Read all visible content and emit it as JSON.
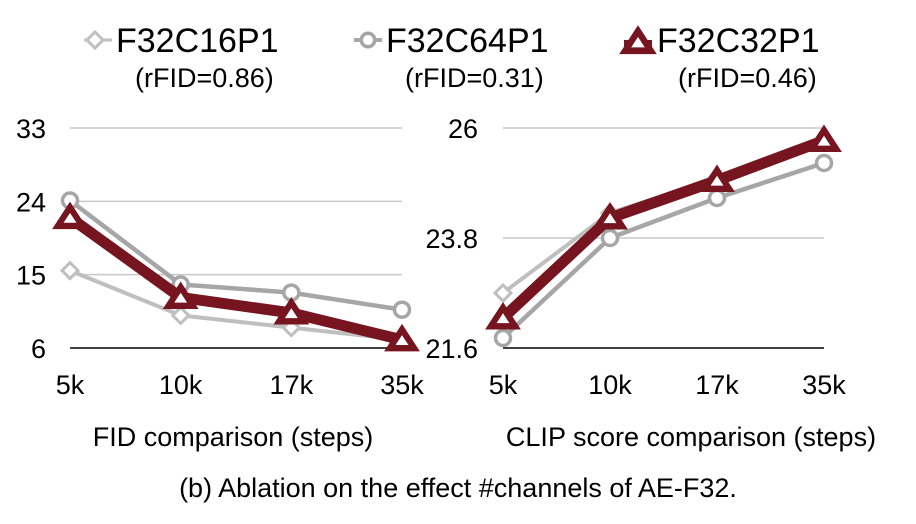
{
  "legend": [
    {
      "name": "F32C16P1",
      "sub": "(rFID=0.86)",
      "marker": "diamond",
      "color": "#bfbfbf"
    },
    {
      "name": "F32C64P1",
      "sub": "(rFID=0.31)",
      "marker": "circle",
      "color": "#a6a6a6"
    },
    {
      "name": "F32C32P1",
      "sub": "(rFID=0.46)",
      "marker": "triangle",
      "color": "#76151f"
    }
  ],
  "caption": "(b) Ablation on the effect #channels of AE-F32.",
  "chart_data": [
    {
      "type": "line",
      "title": "",
      "xlabel": "FID comparison (steps)",
      "ylabel": "",
      "categories": [
        "5k",
        "10k",
        "17k",
        "35k"
      ],
      "yticks": [
        "33",
        "24",
        "15",
        "6"
      ],
      "ylim": [
        6,
        33
      ],
      "grid": true,
      "series": [
        {
          "name": "F32C16P1",
          "values": [
            15.5,
            10.0,
            8.5,
            7.0
          ]
        },
        {
          "name": "F32C64P1",
          "values": [
            24.1,
            13.8,
            12.8,
            10.7
          ]
        },
        {
          "name": "F32C32P1",
          "values": [
            22.0,
            12.2,
            10.3,
            7.0
          ]
        }
      ]
    },
    {
      "type": "line",
      "title": "",
      "xlabel": "CLIP score comparison (steps)",
      "ylabel": "",
      "categories": [
        "5k",
        "10k",
        "17k",
        "35k"
      ],
      "yticks": [
        "26",
        "23.8",
        "21.6"
      ],
      "ylim": [
        21.6,
        26
      ],
      "grid": true,
      "series": [
        {
          "name": "F32C16P1",
          "values": [
            22.7,
            24.3,
            25.0,
            25.75
          ]
        },
        {
          "name": "F32C64P1",
          "values": [
            21.8,
            23.8,
            24.6,
            25.3
          ]
        },
        {
          "name": "F32C32P1",
          "values": [
            22.2,
            24.2,
            24.95,
            25.75
          ]
        }
      ]
    }
  ]
}
